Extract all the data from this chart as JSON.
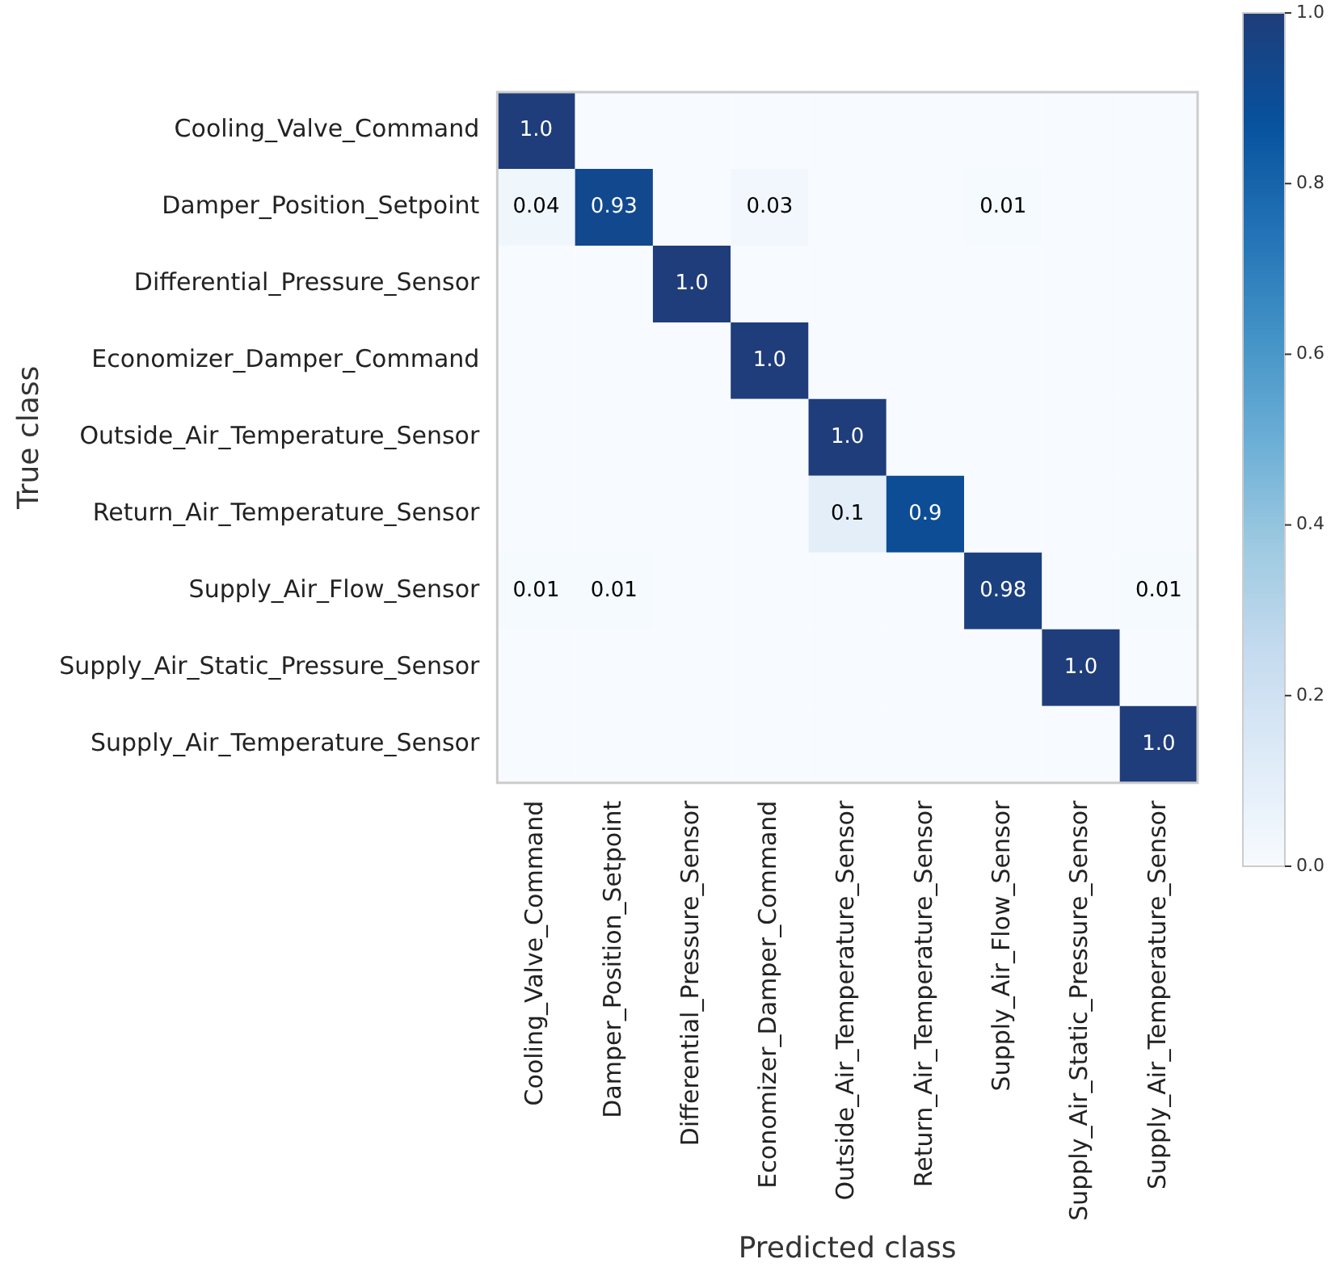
{
  "chart_data": {
    "type": "heatmap",
    "xlabel": "Predicted class",
    "ylabel": "True class",
    "categories": [
      "Cooling_Valve_Command",
      "Damper_Position_Setpoint",
      "Differential_Pressure_Sensor",
      "Economizer_Damper_Command",
      "Outside_Air_Temperature_Sensor",
      "Return_Air_Temperature_Sensor",
      "Supply_Air_Flow_Sensor",
      "Supply_Air_Static_Pressure_Sensor",
      "Supply_Air_Temperature_Sensor"
    ],
    "y_categories": [
      "Cooling_Valve_Command",
      "Damper_Position_Setpoint",
      "Differential_Pressure_Sensor",
      "Economizer_Damper_Command",
      "Outside_Air_Temperature_Sensor",
      "Return_Air_Temperature_Sensor",
      "Supply_Air_Flow_Sensor",
      "Supply_Air_Static_Pressure_Sensor",
      "Supply_Air_Temperature_Sensor"
    ],
    "cells": [
      [
        1.0,
        0,
        0,
        0,
        0,
        0,
        0,
        0,
        0
      ],
      [
        0.04,
        0.93,
        0,
        0.03,
        0,
        0,
        0.01,
        0,
        0
      ],
      [
        0,
        0,
        1.0,
        0,
        0,
        0,
        0,
        0,
        0
      ],
      [
        0,
        0,
        0,
        1.0,
        0,
        0,
        0,
        0,
        0
      ],
      [
        0,
        0,
        0,
        0,
        1.0,
        0,
        0,
        0,
        0
      ],
      [
        0,
        0,
        0,
        0,
        0.1,
        0.9,
        0,
        0,
        0
      ],
      [
        0.01,
        0.01,
        0,
        0,
        0,
        0,
        0.98,
        0,
        0.01
      ],
      [
        0,
        0,
        0,
        0,
        0,
        0,
        0,
        1.0,
        0
      ],
      [
        0,
        0,
        0,
        0,
        0,
        0,
        0,
        0,
        1.0
      ]
    ],
    "cell_labels": [
      [
        "1.0",
        null,
        null,
        null,
        null,
        null,
        null,
        null,
        null
      ],
      [
        "0.04",
        "0.93",
        null,
        "0.03",
        null,
        null,
        "0.01",
        null,
        null
      ],
      [
        null,
        null,
        "1.0",
        null,
        null,
        null,
        null,
        null,
        null
      ],
      [
        null,
        null,
        null,
        "1.0",
        null,
        null,
        null,
        null,
        null
      ],
      [
        null,
        null,
        null,
        null,
        "1.0",
        null,
        null,
        null,
        null
      ],
      [
        null,
        null,
        null,
        null,
        "0.1",
        "0.9",
        null,
        null,
        null
      ],
      [
        "0.01",
        "0.01",
        null,
        null,
        null,
        null,
        "0.98",
        null,
        "0.01"
      ],
      [
        null,
        null,
        null,
        null,
        null,
        null,
        null,
        "1.0",
        null
      ],
      [
        null,
        null,
        null,
        null,
        null,
        null,
        null,
        null,
        "1.0"
      ]
    ],
    "clim": [
      0,
      1
    ],
    "cticks": [
      {
        "value": 0,
        "label": "0.0"
      },
      {
        "value": 0.2,
        "label": "0.2"
      },
      {
        "value": 0.4,
        "label": "0.4"
      },
      {
        "value": 0.6,
        "label": "0.6"
      },
      {
        "value": 0.8,
        "label": "0.8"
      },
      {
        "value": 1,
        "label": "1.0"
      }
    ]
  }
}
